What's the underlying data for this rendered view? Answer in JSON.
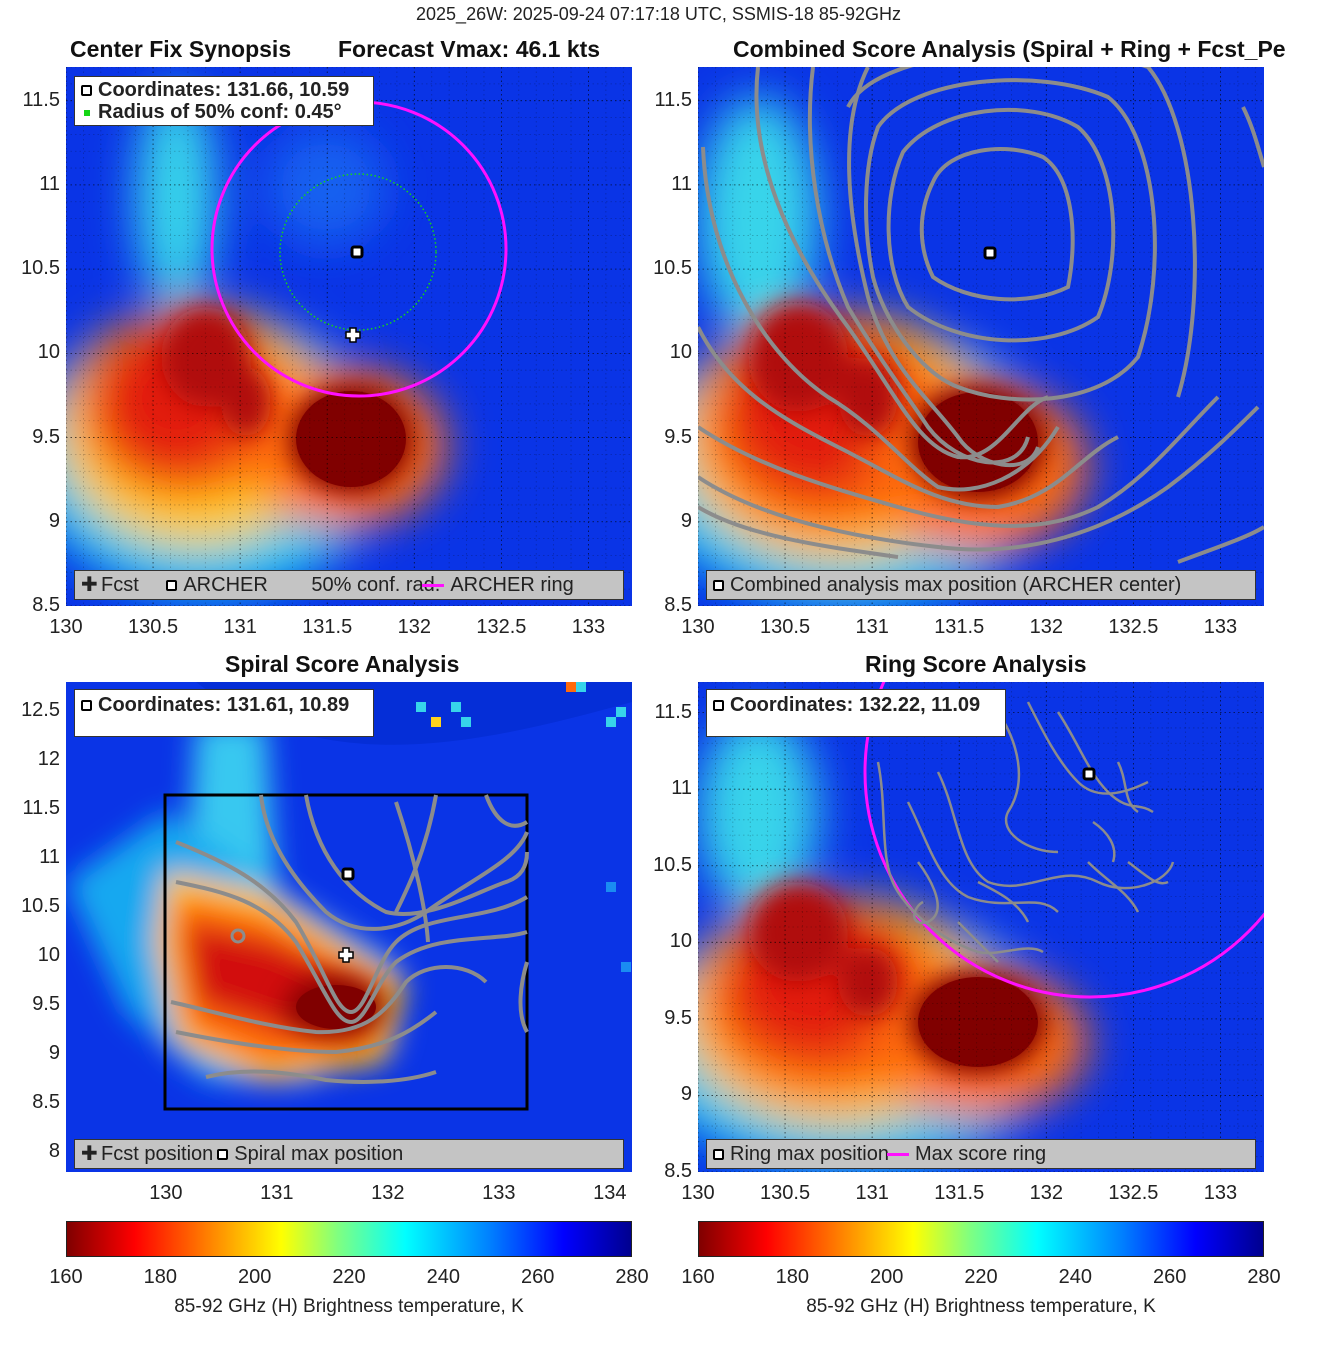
{
  "suptitle": "2025_26W: 2025-09-24 07:17:18 UTC, SSMIS-18 85-92GHz",
  "colors": {
    "cmap_low": "#800000",
    "cmap_mid": "#ffff00",
    "cmap_high": "#00008f",
    "contour": "#8c8c8c",
    "ring": "#ff10ff",
    "conf": "#16d616",
    "background": "#0a34e6"
  },
  "panels": {
    "p1": {
      "title_left": "Center Fix Synopsis",
      "title_right": "Forecast Vmax: 46.1 kts",
      "legend_top": {
        "coord": "Coordinates: 131.66, 10.59",
        "radius": "Radius of 50% conf: 0.45°"
      },
      "legend_bottom": {
        "fcst": "Fcst",
        "archer": "ARCHER",
        "conf": "50% conf. rad.",
        "ring": "ARCHER ring"
      }
    },
    "p2": {
      "title": "Combined Score Analysis (Spiral + Ring + Fcst_Pe",
      "legend_bottom": {
        "item": "Combined analysis max position (ARCHER center)"
      }
    },
    "p3": {
      "title": "Spiral Score Analysis",
      "legend_top": {
        "coord": "Coordinates: 131.61, 10.89"
      },
      "legend_bottom": {
        "fcst": "Fcst position",
        "spiral": "Spiral max position"
      }
    },
    "p4": {
      "title": "Ring Score Analysis",
      "legend_top": {
        "coord": "Coordinates: 132.22, 11.09"
      },
      "legend_bottom": {
        "ring_max": "Ring max position",
        "ring": "Max score ring"
      }
    }
  },
  "colorbar": {
    "label": "85-92 GHz (H) Brightness temperature, K",
    "ticks": [
      "160",
      "180",
      "200",
      "220",
      "240",
      "260",
      "280"
    ]
  },
  "chart_data": [
    {
      "type": "heatmap",
      "title": "Center Fix Synopsis",
      "subtitle": "Forecast Vmax: 46.1 kts",
      "xlim": [
        130,
        133.25
      ],
      "ylim": [
        8.5,
        11.7
      ],
      "xticks": [
        "130",
        "130.5",
        "131",
        "131.5",
        "132",
        "132.5",
        "133"
      ],
      "yticks": [
        "8.5",
        "9",
        "9.5",
        "10",
        "10.5",
        "11",
        "11.5"
      ],
      "archer_center": [
        131.66,
        10.59
      ],
      "forecast_position": [
        131.6,
        10.08
      ],
      "conf_radius_deg": 0.45,
      "grid": true,
      "legend": "bottom"
    },
    {
      "type": "heatmap",
      "title": "Combined Score Analysis (Spiral + Ring + Fcst_Pe",
      "xlim": [
        130,
        133.25
      ],
      "ylim": [
        8.5,
        11.7
      ],
      "xticks": [
        "130",
        "130.5",
        "131",
        "131.5",
        "132",
        "132.5",
        "133"
      ],
      "yticks": [
        "8.5",
        "9",
        "9.5",
        "10",
        "10.5",
        "11",
        "11.5"
      ],
      "max_position": [
        131.66,
        10.59
      ],
      "contours": true,
      "grid": true,
      "legend": "bottom"
    },
    {
      "type": "heatmap",
      "title": "Spiral Score Analysis",
      "xlim": [
        129.1,
        134.2
      ],
      "ylim": [
        7.8,
        12.8
      ],
      "xticks": [
        "130",
        "131",
        "132",
        "133",
        "134"
      ],
      "yticks": [
        "8",
        "8.5",
        "9",
        "9.5",
        "10",
        "10.5",
        "11",
        "11.5",
        "12",
        "12.5"
      ],
      "spiral_max": [
        131.61,
        10.89
      ],
      "forecast_position": [
        131.61,
        10.08
      ],
      "box": {
        "x": [
          130,
          133.25
        ],
        "y": [
          8.5,
          11.7
        ]
      },
      "grid": false,
      "legend": "bottom"
    },
    {
      "type": "heatmap",
      "title": "Ring Score Analysis",
      "xlim": [
        130,
        133.25
      ],
      "ylim": [
        8.5,
        11.7
      ],
      "xticks": [
        "130",
        "130.5",
        "131",
        "131.5",
        "132",
        "132.5",
        "133"
      ],
      "yticks": [
        "8.5",
        "9",
        "9.5",
        "10",
        "10.5",
        "11",
        "11.5"
      ],
      "ring_max": [
        132.22,
        11.09
      ],
      "grid": true,
      "legend": "bottom"
    }
  ],
  "colorbar_data": {
    "vmin": 160,
    "vmax": 280
  }
}
